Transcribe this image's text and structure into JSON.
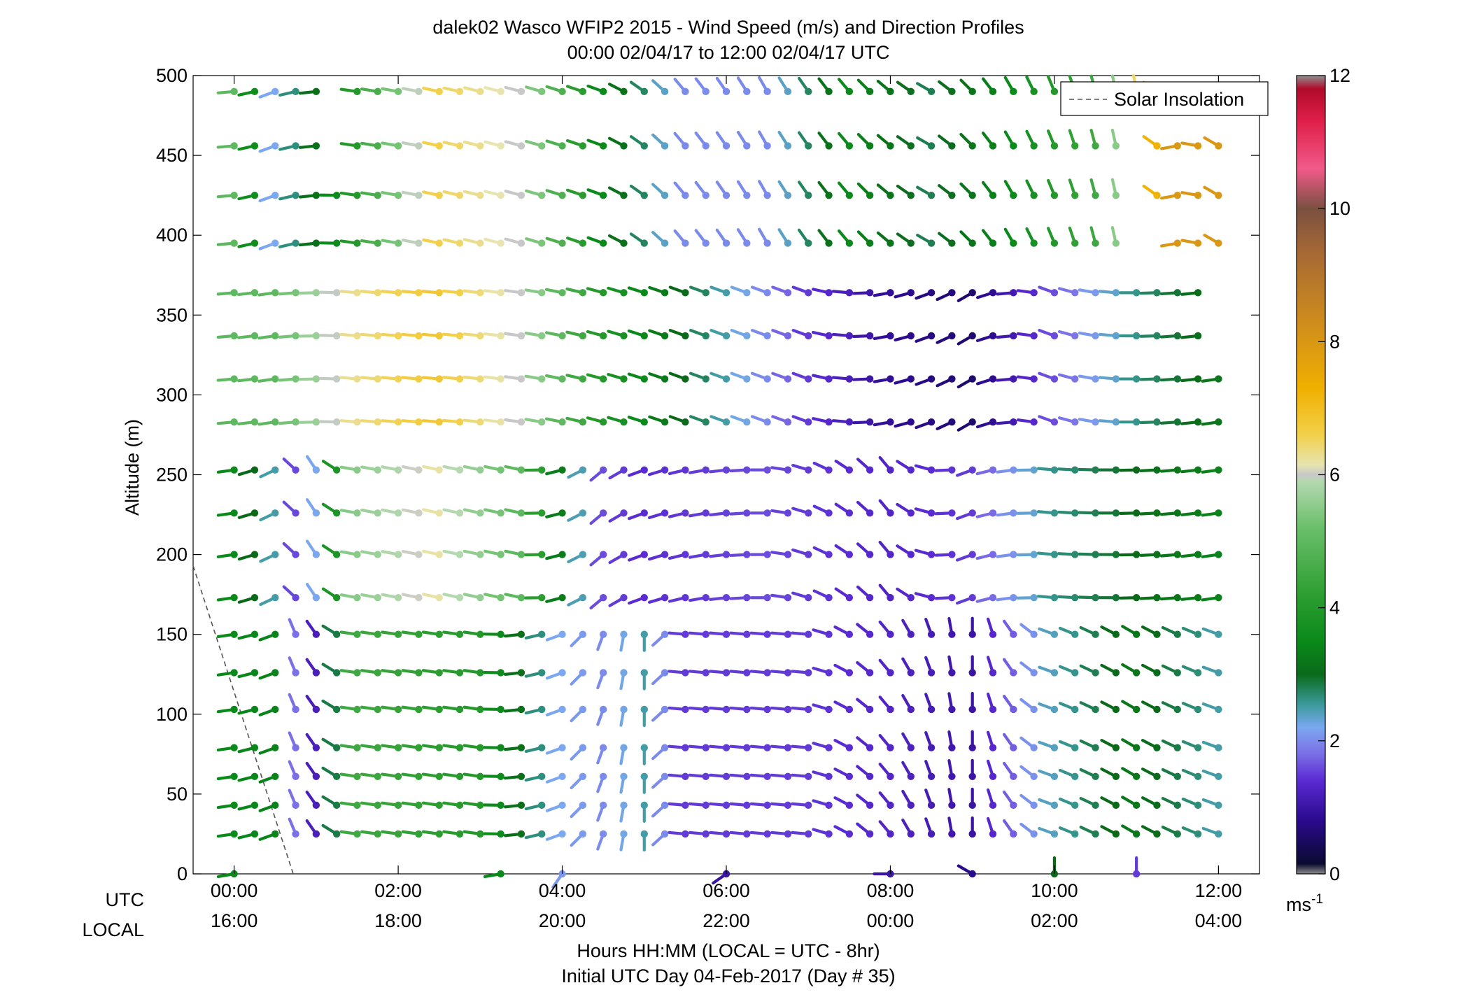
{
  "chart_data": {
    "type": "wind-barb-profile",
    "title_line1": "dalek02 Wasco WFIP2 2015 - Wind Speed (m/s) and Direction Profiles",
    "title_line2": "00:00 02/04/17 to 12:00 02/04/17  UTC",
    "ylabel": "Altitude (m)",
    "ylim": [
      0,
      500
    ],
    "yticks": [
      "0",
      "50",
      "100",
      "150",
      "200",
      "250",
      "300",
      "350",
      "400",
      "450",
      "500"
    ],
    "xlim_hours": [
      -0.5,
      12.5
    ],
    "xticks_hours": [
      0,
      2,
      4,
      6,
      8,
      10,
      12
    ],
    "xtick_labels_utc": [
      "00:00",
      "02:00",
      "04:00",
      "06:00",
      "08:00",
      "10:00",
      "12:00"
    ],
    "xtick_labels_local": [
      "16:00",
      "18:00",
      "20:00",
      "22:00",
      "00:00",
      "02:00",
      "04:00"
    ],
    "row_label_utc": "UTC",
    "row_label_local": "LOCAL",
    "xlabel_line1": "Hours HH:MM  (LOCAL = UTC - 8hr)",
    "xlabel_line2": "Initial UTC Day 04-Feb-2017 (Day # 35)",
    "legend_label": "Solar Insolation",
    "legend_position": "top-right",
    "colorbar": {
      "ticks": [
        "0",
        "2",
        "4",
        "6",
        "8",
        "10",
        "12"
      ],
      "range": [
        0,
        12
      ],
      "unit_base": "ms",
      "unit_exp": "-1",
      "stops": [
        {
          "v": 0.0,
          "c": "#8c8c8c"
        },
        {
          "v": 0.15,
          "c": "#0a0a30"
        },
        {
          "v": 0.8,
          "c": "#2a0a8c"
        },
        {
          "v": 1.4,
          "c": "#5a2ad2"
        },
        {
          "v": 1.8,
          "c": "#7b6ee6"
        },
        {
          "v": 2.2,
          "c": "#7ba8f0"
        },
        {
          "v": 2.55,
          "c": "#3a9a9a"
        },
        {
          "v": 3.0,
          "c": "#0a6a1a"
        },
        {
          "v": 3.5,
          "c": "#0a8a1a"
        },
        {
          "v": 4.2,
          "c": "#2e9e32"
        },
        {
          "v": 5.2,
          "c": "#6abf6a"
        },
        {
          "v": 5.9,
          "c": "#b4d8b0"
        },
        {
          "v": 6.0,
          "c": "#c8c8c8"
        },
        {
          "v": 6.15,
          "c": "#e8e4b0"
        },
        {
          "v": 6.6,
          "c": "#f2d04a"
        },
        {
          "v": 7.3,
          "c": "#f0b000"
        },
        {
          "v": 8.2,
          "c": "#d2901a"
        },
        {
          "v": 9.3,
          "c": "#a86a34"
        },
        {
          "v": 10.0,
          "c": "#7a5040"
        },
        {
          "v": 10.6,
          "c": "#f05a8a"
        },
        {
          "v": 11.3,
          "c": "#e0204a"
        },
        {
          "v": 11.8,
          "c": "#b00a2a"
        },
        {
          "v": 12.0,
          "c": "#909090"
        }
      ]
    },
    "solar_line": [
      {
        "t": -0.5,
        "alt": 193
      },
      {
        "t": 0.72,
        "alt": 0
      }
    ],
    "altitudes_m": [
      0,
      25,
      43,
      61,
      79,
      103,
      126,
      150,
      173,
      200,
      226,
      253,
      283,
      310,
      337,
      364,
      395,
      425,
      456,
      490
    ],
    "time_step_hours": 0.25,
    "altitude_groups": [
      {
        "lo": 0,
        "hi": 0,
        "keys": [
          {
            "t": 0.0,
            "s": 3.5,
            "d": 260
          },
          {
            "t": 3.25,
            "s": 3.5,
            "d": 260
          },
          {
            "t": 4.0,
            "s": 2.1,
            "d": 215
          },
          {
            "t": 6.0,
            "s": 1.0,
            "d": 235
          },
          {
            "t": 8.0,
            "s": 1.0,
            "d": 270
          },
          {
            "t": 9.0,
            "s": 0.8,
            "d": 300
          },
          {
            "t": 10.0,
            "s": 3.0,
            "d": 0
          },
          {
            "t": 11.0,
            "s": 1.5,
            "d": 0
          }
        ]
      },
      {
        "lo": 25,
        "hi": 150,
        "keys": [
          {
            "t": 0.0,
            "s": 3.5,
            "d": 262
          },
          {
            "t": 0.5,
            "s": 3.4,
            "d": 250
          },
          {
            "t": 0.8,
            "s": 1.5,
            "d": 355
          },
          {
            "t": 1.0,
            "s": 1.2,
            "d": 325
          },
          {
            "t": 1.5,
            "s": 4.5,
            "d": 278
          },
          {
            "t": 3.0,
            "s": 4.0,
            "d": 278
          },
          {
            "t": 4.0,
            "s": 2.2,
            "d": 250
          },
          {
            "t": 4.5,
            "s": 2.0,
            "d": 200
          },
          {
            "t": 5.0,
            "s": 2.5,
            "d": 180
          },
          {
            "t": 5.5,
            "s": 1.5,
            "d": 275
          },
          {
            "t": 7.0,
            "s": 1.5,
            "d": 275
          },
          {
            "t": 8.0,
            "s": 1.3,
            "d": 320
          },
          {
            "t": 9.0,
            "s": 1.0,
            "d": 0
          },
          {
            "t": 10.0,
            "s": 2.4,
            "d": 290
          },
          {
            "t": 11.0,
            "s": 3.2,
            "d": 300
          },
          {
            "t": 12.0,
            "s": 2.5,
            "d": 290
          }
        ]
      },
      {
        "lo": 173,
        "hi": 253,
        "keys": [
          {
            "t": 0.0,
            "s": 3.5,
            "d": 262
          },
          {
            "t": 0.5,
            "s": 2.5,
            "d": 245
          },
          {
            "t": 0.85,
            "s": 1.2,
            "d": 340
          },
          {
            "t": 1.5,
            "s": 5.5,
            "d": 280
          },
          {
            "t": 2.5,
            "s": 6.2,
            "d": 282
          },
          {
            "t": 3.5,
            "s": 5.0,
            "d": 282
          },
          {
            "t": 4.5,
            "s": 1.6,
            "d": 230
          },
          {
            "t": 5.0,
            "s": 1.4,
            "d": 250
          },
          {
            "t": 6.5,
            "s": 1.6,
            "d": 270
          },
          {
            "t": 8.0,
            "s": 1.3,
            "d": 320
          },
          {
            "t": 9.0,
            "s": 1.5,
            "d": 250
          },
          {
            "t": 10.0,
            "s": 2.6,
            "d": 275
          },
          {
            "t": 12.0,
            "s": 3.4,
            "d": 262
          }
        ]
      },
      {
        "lo": 283,
        "hi": 364,
        "keys": [
          {
            "t": 0.0,
            "s": 5.0,
            "d": 265
          },
          {
            "t": 0.5,
            "s": 5.0,
            "d": 262
          },
          {
            "t": 1.5,
            "s": 6.3,
            "d": 275
          },
          {
            "t": 2.5,
            "s": 6.8,
            "d": 275
          },
          {
            "t": 3.5,
            "s": 6.0,
            "d": 278
          },
          {
            "t": 4.5,
            "s": 4.0,
            "d": 285
          },
          {
            "t": 5.5,
            "s": 3.0,
            "d": 290
          },
          {
            "t": 7.0,
            "s": 1.5,
            "d": 290
          },
          {
            "t": 8.0,
            "s": 0.9,
            "d": 260
          },
          {
            "t": 9.0,
            "s": 0.6,
            "d": 240
          },
          {
            "t": 10.0,
            "s": 1.6,
            "d": 290
          },
          {
            "t": 11.0,
            "s": 2.6,
            "d": 270
          },
          {
            "t": 12.0,
            "s": 3.2,
            "d": 262
          }
        ]
      },
      {
        "lo": 395,
        "hi": 490,
        "keys": [
          {
            "t": 0.0,
            "s": 5.0,
            "d": 265
          },
          {
            "t": 0.5,
            "s": 2.2,
            "d": 250
          },
          {
            "t": 1.5,
            "s": 4.0,
            "d": 278
          },
          {
            "t": 2.5,
            "s": 6.6,
            "d": 282
          },
          {
            "t": 3.5,
            "s": 6.0,
            "d": 285
          },
          {
            "t": 4.5,
            "s": 3.5,
            "d": 290
          },
          {
            "t": 5.5,
            "s": 2.0,
            "d": 320
          },
          {
            "t": 6.5,
            "s": 2.0,
            "d": 330
          },
          {
            "t": 7.5,
            "s": 3.5,
            "d": 320
          },
          {
            "t": 8.5,
            "s": 2.8,
            "d": 300
          },
          {
            "t": 9.5,
            "s": 3.5,
            "d": 330
          },
          {
            "t": 10.5,
            "s": 4.5,
            "d": 345
          },
          {
            "t": 11.0,
            "s": 6.5,
            "d": 350
          },
          {
            "t": 11.5,
            "s": 8.0,
            "d": 260
          },
          {
            "t": 12.0,
            "s": 8.0,
            "d": 300
          }
        ]
      }
    ],
    "missing": [
      {
        "alt_from": 25,
        "alt_to": 490,
        "t_from": 1.2,
        "t_to": 1.2
      },
      {
        "alt_from": 456,
        "alt_to": 490,
        "t_from": 1.25,
        "t_to": 1.25
      },
      {
        "alt_from": 395,
        "alt_to": 456,
        "t_from": 11.0,
        "t_to": 11.0
      },
      {
        "alt_from": 337,
        "alt_to": 364,
        "t_from": 12.0,
        "t_to": 12.0
      },
      {
        "alt_from": 395,
        "alt_to": 395,
        "t_from": 11.25,
        "t_to": 11.25
      }
    ]
  }
}
